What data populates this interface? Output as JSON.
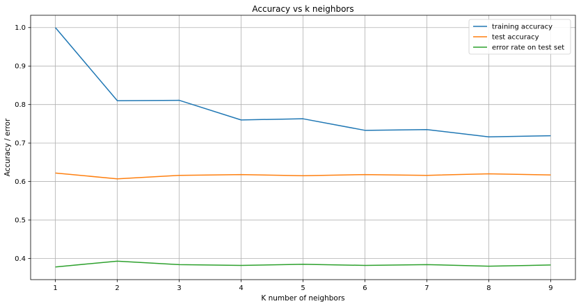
{
  "chart_data": {
    "type": "line",
    "title": "Accuracy vs k neighbors",
    "xlabel": "K number of neighbors",
    "ylabel": "Accuracy / error",
    "x": [
      1,
      2,
      3,
      4,
      5,
      6,
      7,
      8,
      9
    ],
    "xlim": [
      0.6,
      9.4
    ],
    "ylim": [
      0.345,
      1.032
    ],
    "xticks": [
      "1",
      "2",
      "3",
      "4",
      "5",
      "6",
      "7",
      "8",
      "9"
    ],
    "yticks": [
      "0.4",
      "0.5",
      "0.6",
      "0.7",
      "0.8",
      "0.9",
      "1.0"
    ],
    "grid": true,
    "legend_position": "top-right",
    "series": [
      {
        "name": "training accuracy",
        "color": "#1f77b4",
        "values": [
          1.0,
          0.81,
          0.811,
          0.76,
          0.763,
          0.733,
          0.735,
          0.716,
          0.719
        ]
      },
      {
        "name": "test accuracy",
        "color": "#ff7f0e",
        "values": [
          0.622,
          0.607,
          0.616,
          0.618,
          0.615,
          0.618,
          0.616,
          0.62,
          0.617
        ]
      },
      {
        "name": "error rate on test set",
        "color": "#2ca02c",
        "values": [
          0.378,
          0.393,
          0.384,
          0.382,
          0.385,
          0.382,
          0.384,
          0.38,
          0.383
        ]
      }
    ]
  }
}
